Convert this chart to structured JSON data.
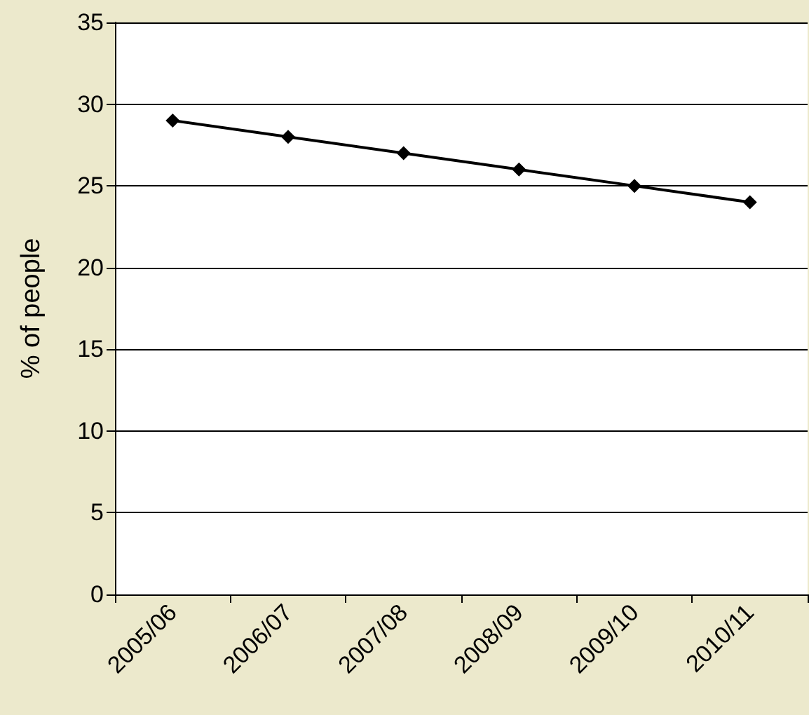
{
  "chart_data": {
    "type": "line",
    "ylabel": "% of people",
    "categories": [
      "2005/06",
      "2006/07",
      "2007/08",
      "2008/09",
      "2009/10",
      "2010/11"
    ],
    "series": [
      {
        "color": "#000000",
        "values": [
          29,
          28,
          27,
          26,
          25,
          24
        ]
      }
    ],
    "ylim": [
      0,
      35
    ],
    "yticks": [
      0,
      5,
      10,
      15,
      20,
      25,
      30,
      35
    ],
    "grid": "y",
    "marker": "diamond",
    "line_style": "solid"
  }
}
